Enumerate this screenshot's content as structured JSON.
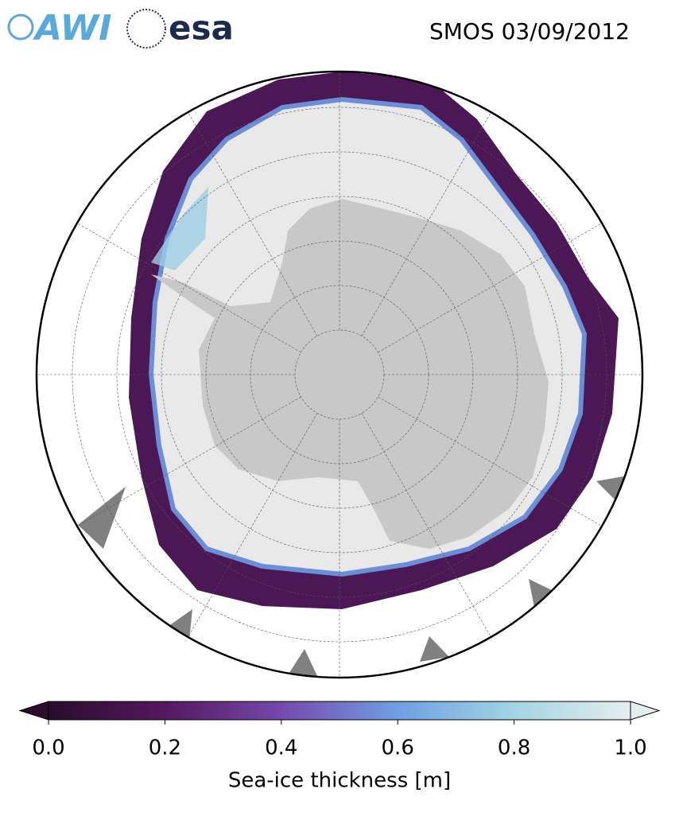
{
  "header": {
    "logo_left": "AWI",
    "logo_right": "esa",
    "title": "SMOS 03/09/2012"
  },
  "colorbar": {
    "label": "Sea-ice thickness [m]",
    "range": [
      0,
      1
    ],
    "colormap": [
      "#2a0c2c",
      "#55185f",
      "#7648ad",
      "#6f9fe2",
      "#a3d4e3",
      "#e5eeee"
    ],
    "ticks": [
      {
        "value": 0,
        "label": "0.0"
      },
      {
        "value": 0.2,
        "label": "0.2"
      },
      {
        "value": 0.4,
        "label": "0.4"
      },
      {
        "value": 0.6,
        "label": "0.6"
      },
      {
        "value": 0.8,
        "label": "0.8"
      },
      {
        "value": 1,
        "label": "1.0"
      }
    ]
  }
}
